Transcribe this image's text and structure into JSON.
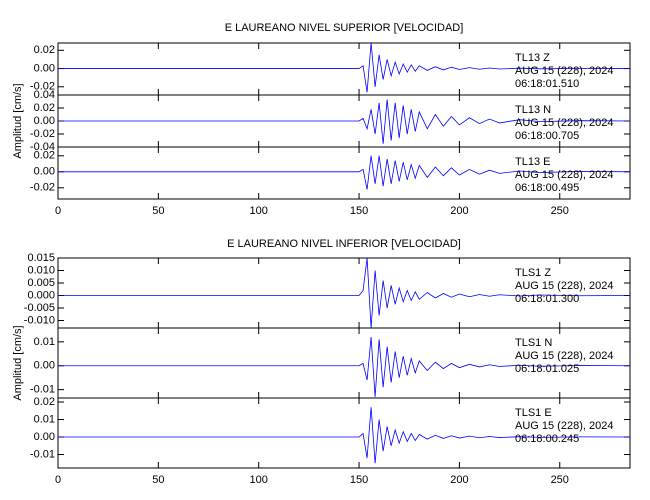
{
  "chart_data": [
    {
      "type": "line",
      "title": "E LAUREANO NIVEL SUPERIOR [VELOCIDAD]",
      "y_label": "Amplitud [cm/s]",
      "xlim": [
        0,
        285
      ],
      "xticks": [
        0,
        50,
        100,
        150,
        200,
        250
      ],
      "color": "#0000ff",
      "x": [
        0,
        100,
        150,
        152,
        154,
        156,
        158,
        160,
        162,
        164,
        166,
        168,
        170,
        172,
        174,
        176,
        178,
        180,
        184,
        188,
        192,
        196,
        200,
        205,
        210,
        215,
        220,
        230,
        240,
        260,
        285
      ],
      "panels": [
        {
          "station": "TL13   Z",
          "date": "AUG 15 (228), 2024",
          "time": "06:18:01.510",
          "ylim": [
            -0.029,
            0.028
          ],
          "yticks": [
            0.02,
            {
              "value": 0,
              "label": "0.00"
            },
            -0.02
          ],
          "values": [
            0,
            0,
            0,
            0.003,
            -0.026,
            0.028,
            -0.02,
            0.015,
            -0.012,
            0.01,
            -0.008,
            0.007,
            -0.006,
            0.005,
            -0.004,
            0.004,
            -0.003,
            0.003,
            -0.002,
            0.002,
            -0.0015,
            0.0015,
            -0.001,
            0.001,
            -0.0008,
            0.0006,
            -0.0005,
            0.0004,
            -0.0003,
            0.0002,
            0
          ]
        },
        {
          "station": "TL13   N",
          "date": "AUG 15 (228), 2024",
          "time": "06:18:00.705",
          "ylim": [
            -0.04,
            0.04
          ],
          "yticks": [
            0.04,
            0.02,
            {
              "value": 0,
              "label": "0.00"
            },
            -0.02,
            -0.04
          ],
          "values": [
            0,
            0,
            0,
            0.004,
            -0.012,
            0.018,
            -0.02,
            0.028,
            -0.035,
            0.033,
            -0.03,
            0.028,
            -0.026,
            0.024,
            -0.02,
            0.018,
            -0.016,
            0.014,
            -0.012,
            0.01,
            -0.008,
            0.007,
            -0.006,
            0.005,
            -0.004,
            0.003,
            -0.003,
            0.002,
            -0.001,
            0.0005,
            0
          ]
        },
        {
          "station": "TL13   E",
          "date": "AUG 15 (228), 2024",
          "time": "06:18:00.495",
          "ylim": [
            -0.034,
            0.031
          ],
          "yticks": [
            0.02,
            {
              "value": 0,
              "label": "0.00"
            },
            -0.02
          ],
          "values": [
            0,
            0,
            0,
            0.003,
            -0.022,
            0.02,
            -0.015,
            0.02,
            -0.018,
            0.016,
            -0.015,
            0.014,
            -0.012,
            0.012,
            -0.01,
            0.009,
            -0.008,
            0.008,
            -0.007,
            0.006,
            -0.005,
            0.005,
            -0.004,
            0.003,
            -0.003,
            0.002,
            -0.002,
            0.001,
            -0.001,
            0.0005,
            0
          ]
        }
      ]
    },
    {
      "type": "line",
      "title": "E LAUREANO NIVEL INFERIOR [VELOCIDAD]",
      "y_label": "Amplitud [cm/s]",
      "xlim": [
        0,
        285
      ],
      "xticks": [
        0,
        50,
        100,
        150,
        200,
        250
      ],
      "color": "#0000ff",
      "x": [
        0,
        100,
        150,
        152,
        154,
        156,
        158,
        160,
        162,
        164,
        166,
        168,
        170,
        172,
        174,
        176,
        178,
        180,
        184,
        188,
        192,
        196,
        200,
        205,
        210,
        215,
        220,
        230,
        240,
        260,
        285
      ],
      "panels": [
        {
          "station": "TLS1   Z",
          "date": "AUG 15 (228), 2024",
          "time": "06:18:01.300",
          "ylim": [
            -0.013,
            0.015
          ],
          "yticks": [
            0.015,
            {
              "value": 0.01,
              "label": "0.010"
            },
            0.005,
            {
              "value": 0,
              "label": "0.000"
            },
            -0.005,
            {
              "value": -0.01,
              "label": "-0.010"
            }
          ],
          "values": [
            0,
            0,
            0,
            0.002,
            0.015,
            -0.013,
            0.01,
            -0.008,
            0.006,
            -0.005,
            0.004,
            -0.0035,
            0.003,
            -0.0025,
            0.002,
            -0.002,
            0.0015,
            -0.0015,
            0.0012,
            -0.001,
            0.0008,
            -0.0007,
            0.0006,
            -0.0005,
            0.0004,
            -0.0003,
            0.0003,
            -0.0002,
            0.0002,
            -0.0001,
            0
          ]
        },
        {
          "station": "TLS1   N",
          "date": "AUG 15 (228), 2024",
          "time": "06:18:01.025",
          "ylim": [
            -0.0135,
            0.0158
          ],
          "yticks": [
            0.01,
            {
              "value": 0,
              "label": "0.00"
            },
            -0.01
          ],
          "values": [
            0,
            0,
            0,
            0.001,
            -0.006,
            0.012,
            -0.013,
            0.011,
            -0.009,
            0.008,
            -0.007,
            0.006,
            -0.005,
            0.004,
            -0.004,
            0.003,
            -0.003,
            0.002,
            -0.002,
            0.0015,
            -0.0012,
            0.001,
            -0.0008,
            0.0006,
            -0.0005,
            0.0004,
            -0.0003,
            0.0002,
            -0.0002,
            0.0001,
            0
          ]
        },
        {
          "station": "TLS1   E",
          "date": "AUG 15 (228), 2024",
          "time": "06:18:00.245",
          "ylim": [
            -0.0177,
            0.0223
          ],
          "yticks": [
            0.02,
            0.01,
            {
              "value": 0,
              "label": "0.00"
            },
            -0.01
          ],
          "values": [
            0,
            0,
            0,
            0.002,
            -0.012,
            0.017,
            -0.015,
            0.01,
            -0.008,
            0.006,
            -0.005,
            0.004,
            -0.0035,
            0.003,
            -0.0025,
            0.002,
            -0.002,
            0.0015,
            -0.0012,
            0.001,
            -0.0008,
            0.0007,
            -0.0006,
            0.0005,
            -0.0004,
            0.0003,
            -0.0003,
            0.0002,
            -0.0002,
            0.0001,
            0
          ]
        }
      ]
    }
  ]
}
